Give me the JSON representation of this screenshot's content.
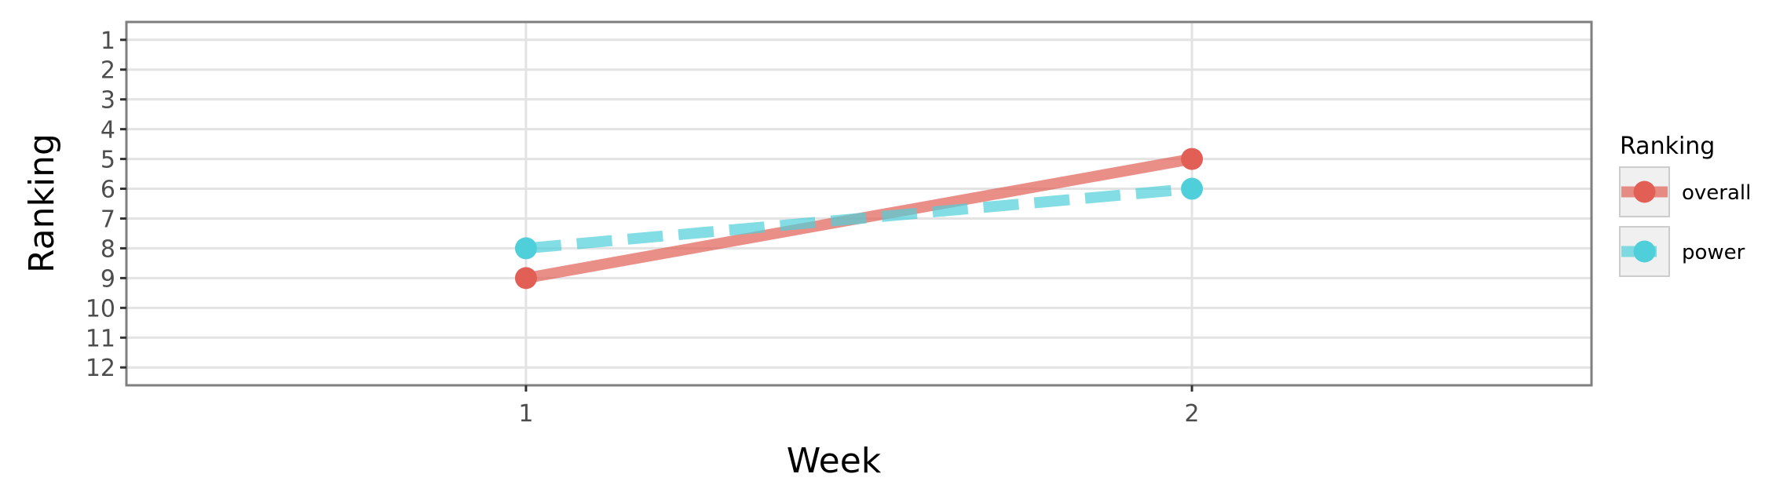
{
  "chart_data": {
    "type": "line",
    "xlabel": "Week",
    "ylabel": "Ranking",
    "x": [
      1,
      2
    ],
    "xlim": [
      0.4,
      2.6
    ],
    "ylim": [
      12.6,
      0.4
    ],
    "y_reversed": true,
    "x_ticks": [
      "1",
      "2"
    ],
    "y_ticks": [
      "1",
      "2",
      "3",
      "4",
      "5",
      "6",
      "7",
      "8",
      "9",
      "10",
      "11",
      "12"
    ],
    "grid": true,
    "legend": {
      "title": "Ranking",
      "placement": "right"
    },
    "series": [
      {
        "name": "overall",
        "values": [
          9,
          5
        ],
        "color": "#e15f55",
        "line_style": "solid"
      },
      {
        "name": "power",
        "values": [
          8,
          6
        ],
        "color": "#4fcfd9",
        "line_style": "dashed"
      }
    ]
  }
}
